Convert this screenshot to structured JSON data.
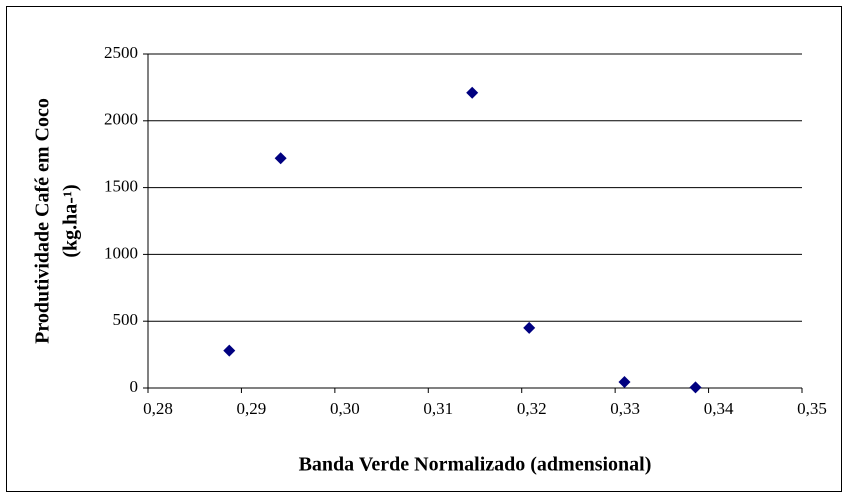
{
  "chart_data": {
    "type": "scatter",
    "x_label": "Banda Verde Normalizado (admensional)",
    "y_label": [
      "Produtividade Café em Coco",
      "(kg.ha-¹)"
    ],
    "x": [
      0.2887,
      0.2942,
      0.3147,
      0.3208,
      0.331,
      0.3386
    ],
    "values": [
      280,
      1720,
      2210,
      450,
      45,
      5
    ],
    "color": "#000080",
    "xlim": [
      0.28,
      0.35
    ],
    "xticks": [
      {
        "value": 0.28,
        "label": "0,28"
      },
      {
        "value": 0.29,
        "label": "0,29"
      },
      {
        "value": 0.3,
        "label": "0,30"
      },
      {
        "value": 0.31,
        "label": "0,31"
      },
      {
        "value": 0.32,
        "label": "0,32"
      },
      {
        "value": 0.33,
        "label": "0,33"
      },
      {
        "value": 0.34,
        "label": "0,34"
      },
      {
        "value": 0.35,
        "label": "0,35"
      }
    ],
    "ylim": [
      0,
      2500
    ],
    "yticks": [
      0,
      500,
      1000,
      1500,
      2000,
      2500
    ],
    "grid": true
  }
}
